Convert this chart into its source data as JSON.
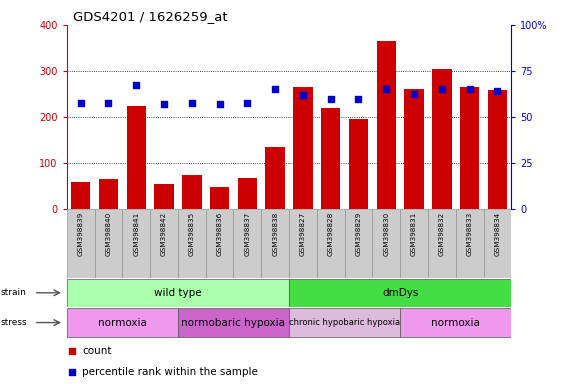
{
  "title": "GDS4201 / 1626259_at",
  "samples": [
    "GSM398839",
    "GSM398840",
    "GSM398841",
    "GSM398842",
    "GSM398835",
    "GSM398836",
    "GSM398837",
    "GSM398838",
    "GSM398827",
    "GSM398828",
    "GSM398829",
    "GSM398830",
    "GSM398831",
    "GSM398832",
    "GSM398833",
    "GSM398834"
  ],
  "counts": [
    60,
    65,
    225,
    55,
    75,
    48,
    68,
    135,
    265,
    220,
    195,
    365,
    260,
    305,
    265,
    258
  ],
  "percentile_ranks": [
    57.5,
    57.5,
    67.5,
    57.0,
    57.5,
    57.0,
    57.5,
    65.0,
    62.0,
    60.0,
    60.0,
    65.0,
    62.5,
    65.0,
    65.0,
    64.0
  ],
  "bar_color": "#cc0000",
  "dot_color": "#0000cc",
  "left_ylim": [
    0,
    400
  ],
  "right_ylim": [
    0,
    100
  ],
  "left_yticks": [
    0,
    100,
    200,
    300,
    400
  ],
  "right_yticks": [
    0,
    25,
    50,
    75,
    100
  ],
  "right_yticklabels": [
    "0",
    "25",
    "50",
    "75",
    "100%"
  ],
  "grid_lines": [
    100,
    200,
    300
  ],
  "strain_labels": [
    {
      "text": "wild type",
      "start": 0,
      "end": 8,
      "color": "#aaffaa"
    },
    {
      "text": "dmDys",
      "start": 8,
      "end": 16,
      "color": "#44dd44"
    }
  ],
  "stress_labels": [
    {
      "text": "normoxia",
      "start": 0,
      "end": 4,
      "color": "#ee99ee"
    },
    {
      "text": "normobaric hypoxia",
      "start": 4,
      "end": 8,
      "color": "#cc66cc"
    },
    {
      "text": "chronic hypobaric hypoxia",
      "start": 8,
      "end": 12,
      "color": "#ddbbdd"
    },
    {
      "text": "normoxia",
      "start": 12,
      "end": 16,
      "color": "#ee99ee"
    }
  ],
  "sample_bg": "#cccccc",
  "background_color": "#ffffff",
  "legend_count_color": "#cc0000",
  "legend_dot_color": "#0000cc"
}
